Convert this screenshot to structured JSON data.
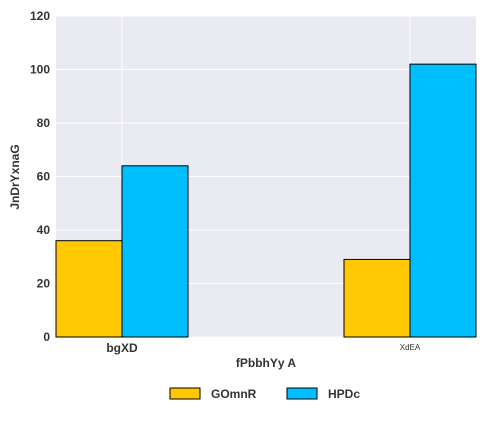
{
  "chart_data": {
    "type": "bar",
    "categories": [
      "bgXD",
      "XdEA"
    ],
    "series": [
      {
        "name": "GOmnR",
        "values": [
          36,
          29
        ],
        "color": "#ffc800"
      },
      {
        "name": "HPDc",
        "values": [
          64,
          102
        ],
        "color": "#00bfff"
      }
    ],
    "xlabel": "fPbbhYy A",
    "ylabel": "JnDrYxnaG",
    "ylim": [
      0,
      120
    ],
    "yticks": [
      0,
      20,
      40,
      60,
      80,
      100,
      120
    ],
    "grid": true,
    "legend_position": "bottom-center",
    "plot_background": "#eaeaf2"
  }
}
